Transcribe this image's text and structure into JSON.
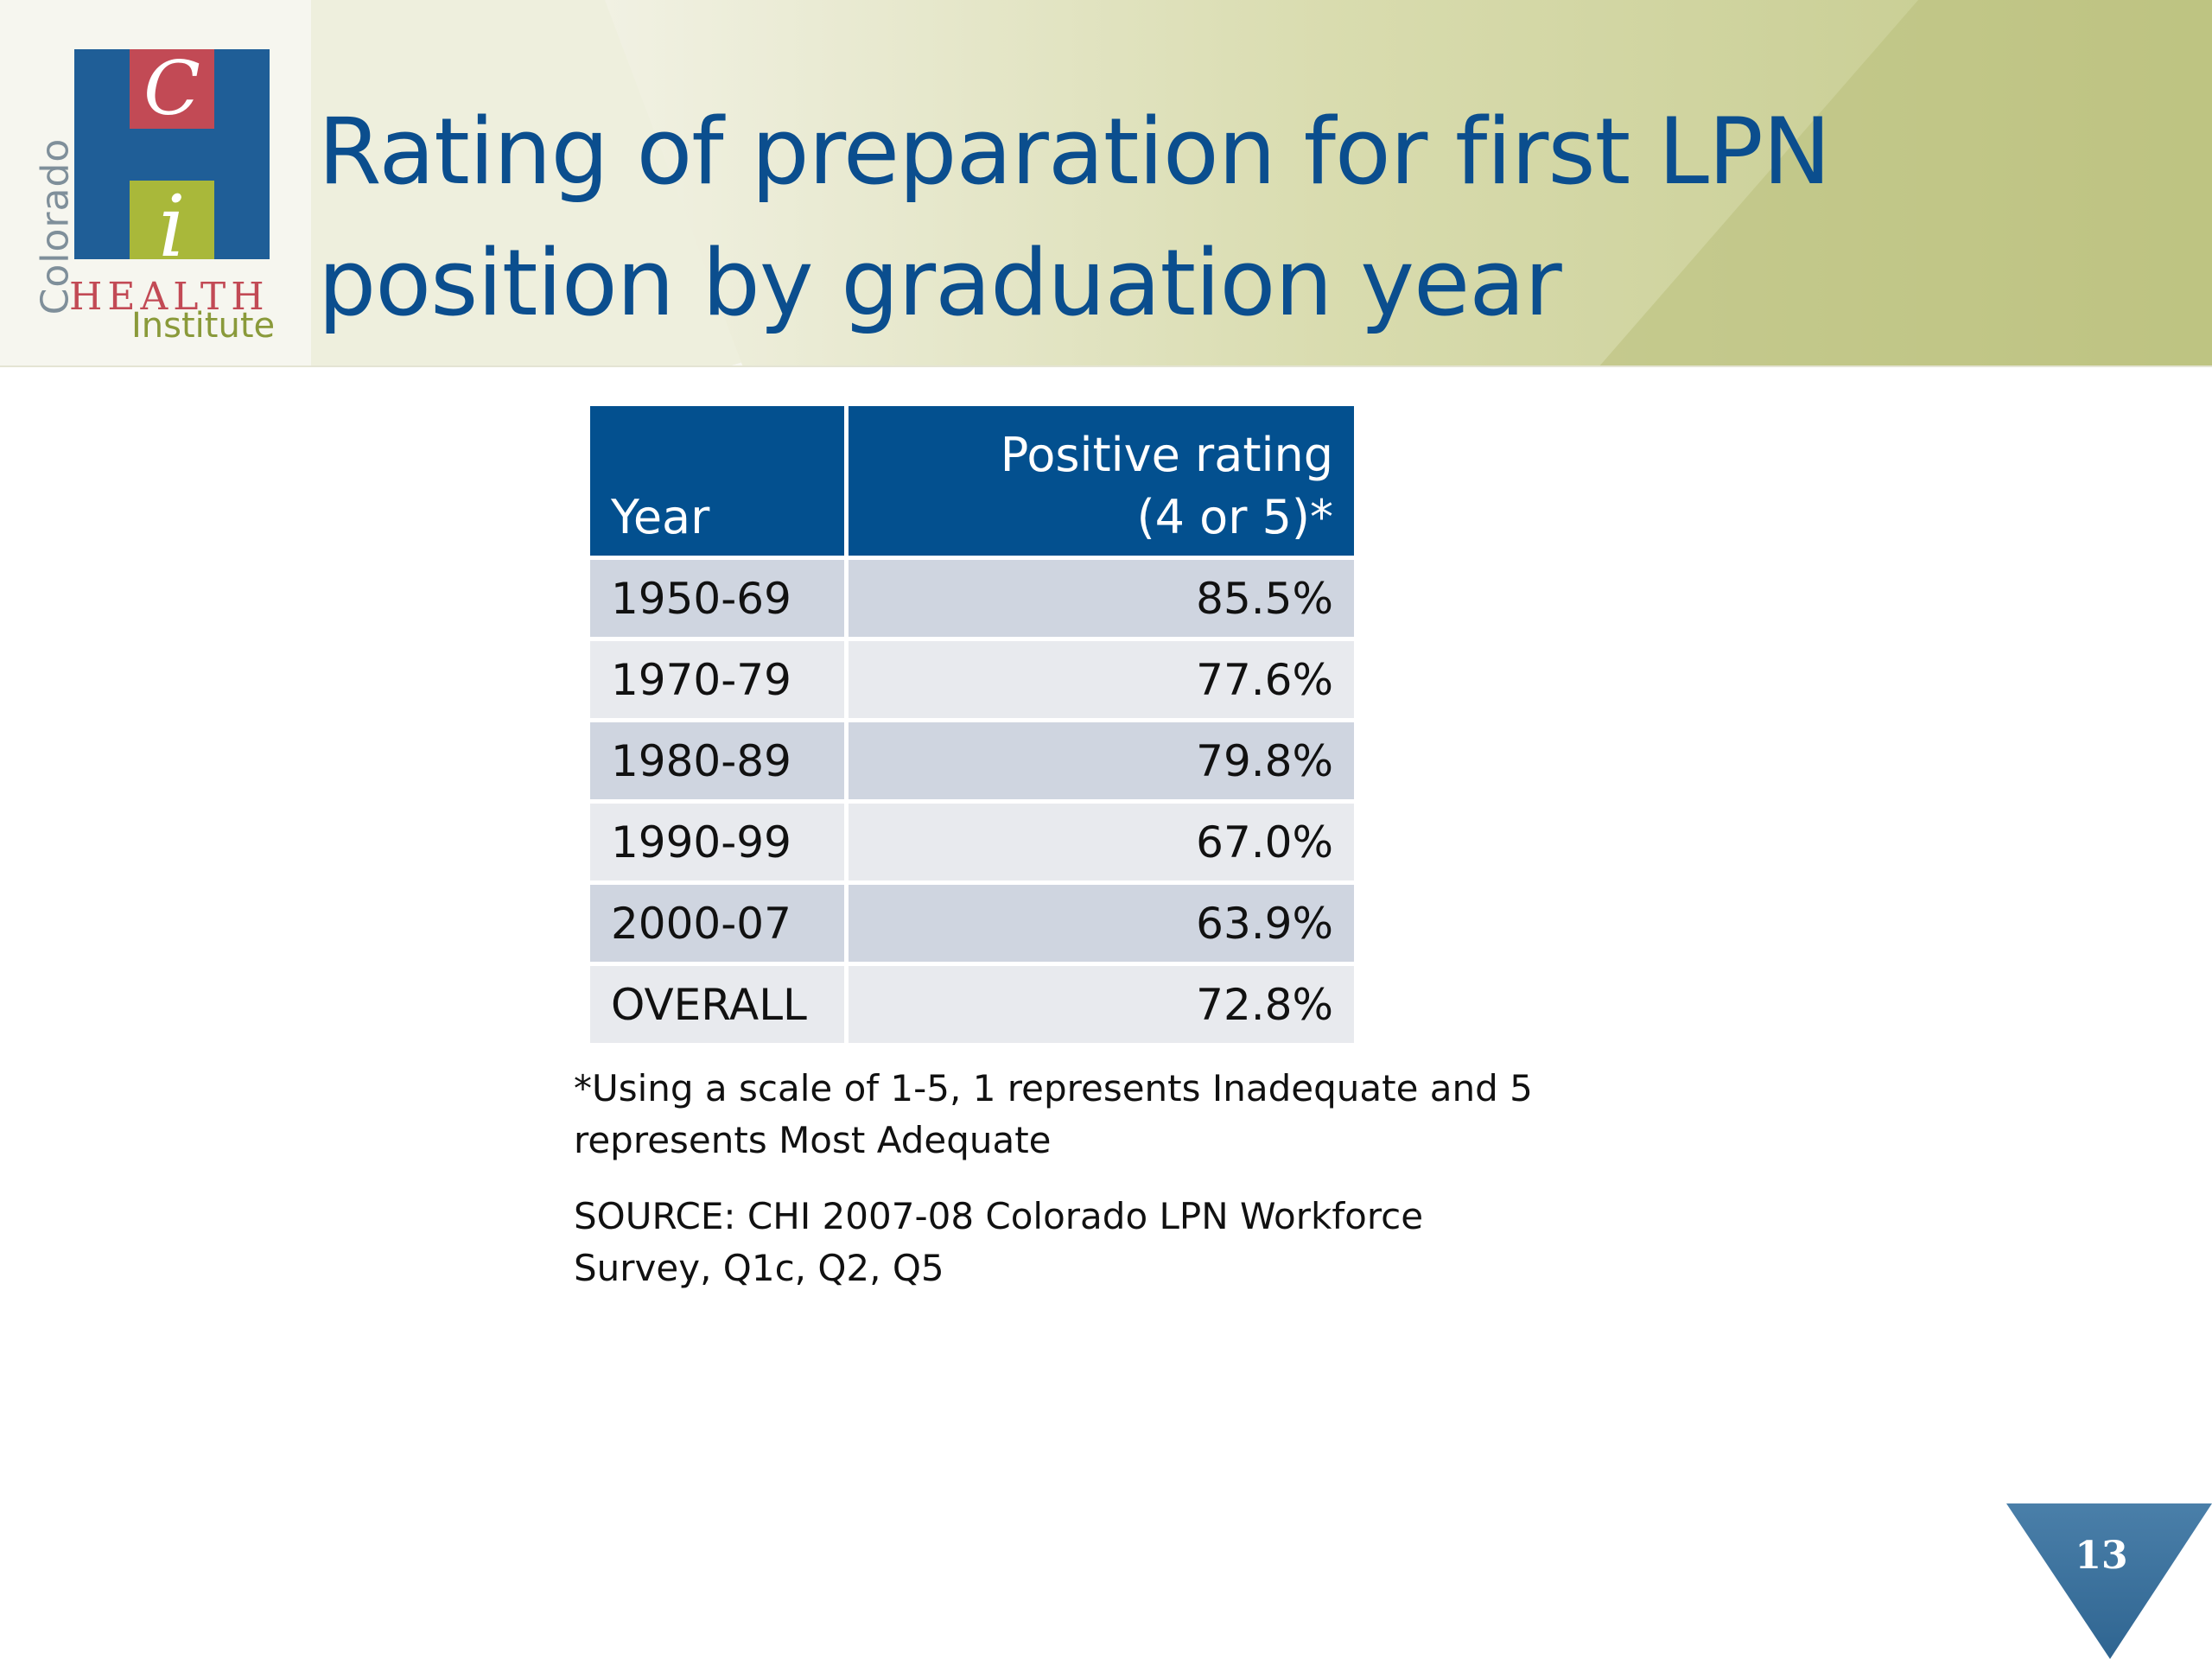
{
  "slide": {
    "title_line1": "Rating of preparation for first LPN",
    "title_line2": "position by graduation year",
    "page_number": "13"
  },
  "logo": {
    "letter_c": "C",
    "letter_i": "i",
    "word_state": "Colorado",
    "word_health": "HEALTH",
    "word_institute": "Institute"
  },
  "table": {
    "headers": {
      "year": "Year",
      "rating_line1": "Positive rating",
      "rating_line2": "(4 or 5)*"
    },
    "rows": [
      {
        "year": "1950-69",
        "value": "85.5%"
      },
      {
        "year": "1970-79",
        "value": "77.6%"
      },
      {
        "year": "1980-89",
        "value": "79.8%"
      },
      {
        "year": "1990-99",
        "value": "67.0%"
      },
      {
        "year": "2000-07",
        "value": "63.9%"
      },
      {
        "year": "OVERALL",
        "value": "72.8%"
      }
    ]
  },
  "notes": {
    "footnote_line1": "*Using a scale of 1-5, 1 represents Inadequate and 5",
    "footnote_line2": "represents Most Adequate",
    "source_line1": "SOURCE: CHI 2007-08 Colorado LPN Workforce",
    "source_line2": "Survey, Q1c, Q2, Q5"
  },
  "colors": {
    "title_blue": "#0b4e8e",
    "header_blue": "#03508f",
    "row_dark": "#cfd5e0",
    "row_light": "#e8eaee",
    "band_green": "#c3c98a",
    "logo_red": "#c24a55",
    "logo_green": "#a9b83a"
  }
}
